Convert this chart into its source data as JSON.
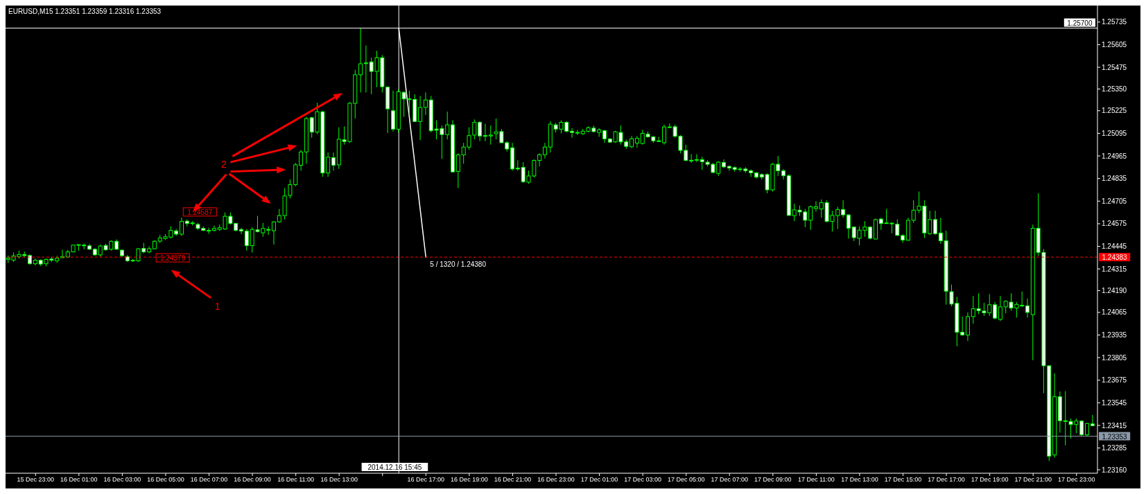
{
  "chart_data": {
    "type": "candlestick",
    "title": "EURUSD,M15  1.23351 1.23359 1.23316 1.23353",
    "color": "#00ff00",
    "x": [
      "2014-12-15T21:45",
      "2014-12-15T22:00",
      "2014-12-15T22:15",
      "2014-12-15T22:30",
      "2014-12-15T22:45",
      "2014-12-15T23:00",
      "2014-12-15T23:15",
      "2014-12-15T23:30",
      "2014-12-15T23:45",
      "2014-12-16T00:00",
      "2014-12-16T00:15",
      "2014-12-16T00:30",
      "2014-12-16T00:45",
      "2014-12-16T01:00",
      "2014-12-16T01:15",
      "2014-12-16T01:30",
      "2014-12-16T01:45",
      "2014-12-16T02:00",
      "2014-12-16T02:15",
      "2014-12-16T02:30",
      "2014-12-16T02:45",
      "2014-12-16T03:00",
      "2014-12-16T03:15",
      "2014-12-16T03:30",
      "2014-12-16T03:45",
      "2014-12-16T04:00",
      "2014-12-16T04:15",
      "2014-12-16T04:30",
      "2014-12-16T04:45",
      "2014-12-16T05:00",
      "2014-12-16T05:15",
      "2014-12-16T05:30",
      "2014-12-16T05:45",
      "2014-12-16T06:00",
      "2014-12-16T06:15",
      "2014-12-16T06:30",
      "2014-12-16T06:45",
      "2014-12-16T07:00",
      "2014-12-16T07:15",
      "2014-12-16T07:30",
      "2014-12-16T07:45",
      "2014-12-16T08:00",
      "2014-12-16T08:15",
      "2014-12-16T08:30",
      "2014-12-16T08:45",
      "2014-12-16T09:00",
      "2014-12-16T09:15",
      "2014-12-16T09:30",
      "2014-12-16T09:45",
      "2014-12-16T10:00",
      "2014-12-16T10:15",
      "2014-12-16T10:30",
      "2014-12-16T10:45",
      "2014-12-16T11:00",
      "2014-12-16T11:15",
      "2014-12-16T11:30",
      "2014-12-16T11:45",
      "2014-12-16T12:00",
      "2014-12-16T12:15",
      "2014-12-16T12:30",
      "2014-12-16T12:45",
      "2014-12-16T13:00",
      "2014-12-16T13:15",
      "2014-12-16T13:30",
      "2014-12-16T13:45",
      "2014-12-16T14:00",
      "2014-12-16T14:15",
      "2014-12-16T14:30",
      "2014-12-16T14:45",
      "2014-12-16T15:00",
      "2014-12-16T15:15",
      "2014-12-16T15:30",
      "2014-12-16T15:45",
      "2014-12-16T16:00",
      "2014-12-16T16:15",
      "2014-12-16T16:30",
      "2014-12-16T16:45",
      "2014-12-16T17:00",
      "2014-12-16T17:15",
      "2014-12-16T17:30",
      "2014-12-16T17:45",
      "2014-12-16T18:00",
      "2014-12-16T18:15",
      "2014-12-16T18:30",
      "2014-12-16T18:45",
      "2014-12-16T19:00",
      "2014-12-16T19:15",
      "2014-12-16T19:30",
      "2014-12-16T19:45",
      "2014-12-16T20:00",
      "2014-12-16T20:15",
      "2014-12-16T20:30",
      "2014-12-16T20:45",
      "2014-12-16T21:00",
      "2014-12-16T21:15",
      "2014-12-16T21:30",
      "2014-12-16T21:45",
      "2014-12-16T22:00",
      "2014-12-16T22:15",
      "2014-12-16T22:30",
      "2014-12-16T22:45",
      "2014-12-16T23:00",
      "2014-12-16T23:15",
      "2014-12-16T23:30",
      "2014-12-16T23:45",
      "2014-12-17T00:00",
      "2014-12-17T00:15",
      "2014-12-17T00:30",
      "2014-12-17T00:45",
      "2014-12-17T01:00",
      "2014-12-17T01:15",
      "2014-12-17T01:30",
      "2014-12-17T01:45",
      "2014-12-17T02:00",
      "2014-12-17T02:15",
      "2014-12-17T02:30",
      "2014-12-17T02:45",
      "2014-12-17T03:00",
      "2014-12-17T03:15",
      "2014-12-17T03:30",
      "2014-12-17T03:45",
      "2014-12-17T04:00",
      "2014-12-17T04:15",
      "2014-12-17T04:30",
      "2014-12-17T04:45",
      "2014-12-17T05:00",
      "2014-12-17T05:15",
      "2014-12-17T05:30",
      "2014-12-17T05:45",
      "2014-12-17T06:00",
      "2014-12-17T06:15",
      "2014-12-17T06:30",
      "2014-12-17T06:45",
      "2014-12-17T07:00",
      "2014-12-17T07:15",
      "2014-12-17T07:30",
      "2014-12-17T07:45",
      "2014-12-17T08:00",
      "2014-12-17T08:15",
      "2014-12-17T08:30",
      "2014-12-17T08:45",
      "2014-12-17T09:00",
      "2014-12-17T09:15",
      "2014-12-17T09:30",
      "2014-12-17T09:45",
      "2014-12-17T10:00",
      "2014-12-17T10:15",
      "2014-12-17T10:30",
      "2014-12-17T10:45",
      "2014-12-17T11:00",
      "2014-12-17T11:15",
      "2014-12-17T11:30",
      "2014-12-17T11:45",
      "2014-12-17T12:00",
      "2014-12-17T12:15",
      "2014-12-17T12:30",
      "2014-12-17T12:45",
      "2014-12-17T13:00",
      "2014-12-17T13:15",
      "2014-12-17T13:30",
      "2014-12-17T13:45",
      "2014-12-17T14:00",
      "2014-12-17T14:15",
      "2014-12-17T14:30",
      "2014-12-17T14:45",
      "2014-12-17T15:00",
      "2014-12-17T15:15",
      "2014-12-17T15:30",
      "2014-12-17T15:45",
      "2014-12-17T16:00",
      "2014-12-17T16:15",
      "2014-12-17T16:30",
      "2014-12-17T16:45",
      "2014-12-17T17:00",
      "2014-12-17T17:15",
      "2014-12-17T17:30",
      "2014-12-17T17:45",
      "2014-12-17T18:00",
      "2014-12-17T18:15",
      "2014-12-17T18:30",
      "2014-12-17T18:45",
      "2014-12-17T19:00",
      "2014-12-17T19:15",
      "2014-12-17T19:30",
      "2014-12-17T19:45",
      "2014-12-17T20:00",
      "2014-12-17T20:15",
      "2014-12-17T20:30",
      "2014-12-17T20:45",
      "2014-12-17T21:00",
      "2014-12-17T21:15",
      "2014-12-17T21:30",
      "2014-12-17T21:45",
      "2014-12-17T22:00",
      "2014-12-17T22:15",
      "2014-12-17T22:30",
      "2014-12-17T22:45",
      "2014-12-17T23:00",
      "2014-12-17T23:15",
      "2014-12-17T23:30",
      "2014-12-17T23:45"
    ],
    "ohlc": [
      [
        1.2437,
        1.24392,
        1.2435,
        1.24378
      ],
      [
        1.24366,
        1.2441,
        1.24355,
        1.2439
      ],
      [
        1.24386,
        1.2442,
        1.24375,
        1.24398
      ],
      [
        1.24398,
        1.24415,
        1.2438,
        1.24392
      ],
      [
        1.24392,
        1.244,
        1.2434,
        1.24345
      ],
      [
        1.24345,
        1.24375,
        1.24335,
        1.24365
      ],
      [
        1.24365,
        1.2437,
        1.24332,
        1.24343
      ],
      [
        1.24345,
        1.24375,
        1.2433,
        1.2437
      ],
      [
        1.24372,
        1.24385,
        1.24355,
        1.24365
      ],
      [
        1.24362,
        1.2439,
        1.2435,
        1.24376
      ],
      [
        1.2438,
        1.24425,
        1.24378,
        1.24386
      ],
      [
        1.24384,
        1.24425,
        1.24378,
        1.24413
      ],
      [
        1.24413,
        1.24455,
        1.2441,
        1.24452
      ],
      [
        1.24452,
        1.24455,
        1.2442,
        1.24455
      ],
      [
        1.24452,
        1.24461,
        1.24428,
        1.2445
      ],
      [
        1.24448,
        1.24458,
        1.24425,
        1.24428
      ],
      [
        1.24428,
        1.24435,
        1.2439,
        1.24396
      ],
      [
        1.24396,
        1.24455,
        1.24385,
        1.24447
      ],
      [
        1.2445,
        1.2446,
        1.2442,
        1.24425
      ],
      [
        1.24428,
        1.2448,
        1.2442,
        1.24474
      ],
      [
        1.24474,
        1.24485,
        1.24425,
        1.24428
      ],
      [
        1.24423,
        1.24428,
        1.24385,
        1.24391
      ],
      [
        1.24386,
        1.24395,
        1.24355,
        1.24362
      ],
      [
        1.24362,
        1.24372,
        1.24355,
        1.24365
      ],
      [
        1.24362,
        1.24435,
        1.24355,
        1.24431
      ],
      [
        1.24433,
        1.24465,
        1.24405,
        1.24413
      ],
      [
        1.24413,
        1.24445,
        1.24405,
        1.24431
      ],
      [
        1.24431,
        1.2448,
        1.24428,
        1.24474
      ],
      [
        1.24475,
        1.2451,
        1.24465,
        1.24493
      ],
      [
        1.2449,
        1.24515,
        1.24482,
        1.245
      ],
      [
        1.24498,
        1.2456,
        1.2449,
        1.24537
      ],
      [
        1.24534,
        1.24545,
        1.24505,
        1.24515
      ],
      [
        1.24515,
        1.2461,
        1.24505,
        1.24589
      ],
      [
        1.2459,
        1.246,
        1.2456,
        1.24577
      ],
      [
        1.24577,
        1.2459,
        1.24565,
        1.2458
      ],
      [
        1.24571,
        1.2458,
        1.2454,
        1.24548
      ],
      [
        1.24548,
        1.2456,
        1.24533,
        1.24537
      ],
      [
        1.24537,
        1.24552,
        1.24517,
        1.24537
      ],
      [
        1.24537,
        1.24565,
        1.2453,
        1.24548
      ],
      [
        1.24542,
        1.2457,
        1.24535,
        1.24552
      ],
      [
        1.24545,
        1.2464,
        1.2454,
        1.24618
      ],
      [
        1.24618,
        1.2464,
        1.2457,
        1.24577
      ],
      [
        1.24577,
        1.2458,
        1.2453,
        1.24537
      ],
      [
        1.24542,
        1.2455,
        1.24515,
        1.24533
      ],
      [
        1.24533,
        1.24545,
        1.2442,
        1.24449
      ],
      [
        1.24449,
        1.24555,
        1.2441,
        1.24542
      ],
      [
        1.2454,
        1.2462,
        1.24525,
        1.2453
      ],
      [
        1.24523,
        1.2458,
        1.245,
        1.24548
      ],
      [
        1.24542,
        1.2456,
        1.2451,
        1.2454
      ],
      [
        1.24535,
        1.2459,
        1.24455,
        1.24586
      ],
      [
        1.24586,
        1.2466,
        1.2458,
        1.24622
      ],
      [
        1.24622,
        1.2478,
        1.246,
        1.24735
      ],
      [
        1.24738,
        1.2483,
        1.2472,
        1.248
      ],
      [
        1.248,
        1.24925,
        1.2479,
        1.24914
      ],
      [
        1.24911,
        1.25,
        1.2488,
        1.24988
      ],
      [
        1.24988,
        1.2519,
        1.2492,
        1.2518
      ],
      [
        1.25185,
        1.2519,
        1.2507,
        1.25102
      ],
      [
        1.25102,
        1.2527,
        1.2509,
        1.25219
      ],
      [
        1.25219,
        1.25225,
        1.24845,
        1.24867
      ],
      [
        1.24867,
        1.24985,
        1.24845,
        1.24958
      ],
      [
        1.24955,
        1.24985,
        1.2488,
        1.24911
      ],
      [
        1.24914,
        1.2513,
        1.2489,
        1.25061
      ],
      [
        1.25058,
        1.25135,
        1.2503,
        1.25048
      ],
      [
        1.25048,
        1.25275,
        1.2504,
        1.25268
      ],
      [
        1.25268,
        1.2546,
        1.2518,
        1.25432
      ],
      [
        1.25432,
        1.257,
        1.2533,
        1.25495
      ],
      [
        1.255,
        1.256,
        1.2533,
        1.25498
      ],
      [
        1.25506,
        1.2553,
        1.2532,
        1.25451
      ],
      [
        1.25451,
        1.2557,
        1.2536,
        1.2553
      ],
      [
        1.2553,
        1.25545,
        1.2533,
        1.25363
      ],
      [
        1.25361,
        1.25365,
        1.25097,
        1.25236
      ],
      [
        1.25225,
        1.2534,
        1.25105,
        1.25119
      ],
      [
        1.25119,
        1.2535,
        1.251,
        1.25334
      ],
      [
        1.25331,
        1.25335,
        1.2519,
        1.25293
      ],
      [
        1.25293,
        1.2534,
        1.252,
        1.2529
      ],
      [
        1.2529,
        1.2532,
        1.2516,
        1.25163
      ],
      [
        1.25163,
        1.2531,
        1.25056,
        1.25244
      ],
      [
        1.25244,
        1.2533,
        1.252,
        1.25287
      ],
      [
        1.25287,
        1.2531,
        1.251,
        1.2511
      ],
      [
        1.2512,
        1.2517,
        1.2506,
        1.25113
      ],
      [
        1.25122,
        1.2514,
        1.24948,
        1.25088
      ],
      [
        1.25088,
        1.2522,
        1.2506,
        1.25144
      ],
      [
        1.25144,
        1.2517,
        1.2487,
        1.24873
      ],
      [
        1.24876,
        1.2498,
        1.2478,
        1.24971
      ],
      [
        1.24971,
        1.2504,
        1.2492,
        1.25016
      ],
      [
        1.25016,
        1.2513,
        1.25,
        1.25082
      ],
      [
        1.25085,
        1.25175,
        1.2506,
        1.25158
      ],
      [
        1.25158,
        1.25165,
        1.2505,
        1.2508
      ],
      [
        1.25082,
        1.2515,
        1.2505,
        1.2508
      ],
      [
        1.2508,
        1.2514,
        1.2503,
        1.25085
      ],
      [
        1.25093,
        1.2518,
        1.2506,
        1.25103
      ],
      [
        1.25105,
        1.2512,
        1.25041,
        1.25041
      ],
      [
        1.25041,
        1.2505,
        1.2499,
        1.25005
      ],
      [
        1.25012,
        1.2504,
        1.2488,
        1.2489
      ],
      [
        1.24895,
        1.2494,
        1.2488,
        1.2489
      ],
      [
        1.24899,
        1.2493,
        1.2481,
        1.24817
      ],
      [
        1.24814,
        1.2488,
        1.24805,
        1.2485
      ],
      [
        1.2485,
        1.24945,
        1.2484,
        1.24939
      ],
      [
        1.24939,
        1.2498,
        1.24905,
        1.24972
      ],
      [
        1.24972,
        1.2504,
        1.2495,
        1.25016
      ],
      [
        1.25016,
        1.25165,
        1.24985,
        1.25148
      ],
      [
        1.25144,
        1.25155,
        1.251,
        1.25119
      ],
      [
        1.25119,
        1.2517,
        1.25095,
        1.25158
      ],
      [
        1.25158,
        1.25165,
        1.251,
        1.25107
      ],
      [
        1.25107,
        1.25125,
        1.2507,
        1.251
      ],
      [
        1.251,
        1.25115,
        1.25085,
        1.251
      ],
      [
        1.25093,
        1.2512,
        1.25085,
        1.25107
      ],
      [
        1.25107,
        1.25135,
        1.251,
        1.25127
      ],
      [
        1.25125,
        1.2514,
        1.251,
        1.25105
      ],
      [
        1.251,
        1.25125,
        1.25075,
        1.25115
      ],
      [
        1.2511,
        1.25115,
        1.2504,
        1.25063
      ],
      [
        1.25063,
        1.25068,
        1.2504,
        1.25044
      ],
      [
        1.25046,
        1.2511,
        1.2504,
        1.25104
      ],
      [
        1.251,
        1.2514,
        1.2503,
        1.25046
      ],
      [
        1.25046,
        1.2506,
        1.25005,
        1.2502
      ],
      [
        1.25018,
        1.2508,
        1.2501,
        1.25064
      ],
      [
        1.25039,
        1.2508,
        1.25012,
        1.25066
      ],
      [
        1.25037,
        1.25115,
        1.2503,
        1.25095
      ],
      [
        1.2509,
        1.25105,
        1.2507,
        1.25075
      ],
      [
        1.25075,
        1.2508,
        1.2504,
        1.25052
      ],
      [
        1.25052,
        1.25075,
        1.25045,
        1.2505
      ],
      [
        1.25041,
        1.25145,
        1.2503,
        1.25132
      ],
      [
        1.2513,
        1.25152,
        1.25125,
        1.25132
      ],
      [
        1.25133,
        1.25145,
        1.2507,
        1.25078
      ],
      [
        1.25078,
        1.25085,
        1.2498,
        1.24997
      ],
      [
        1.24997,
        1.2503,
        1.24935,
        1.24939
      ],
      [
        1.2494,
        1.24975,
        1.24925,
        1.24938
      ],
      [
        1.2494,
        1.24975,
        1.2493,
        1.24944
      ],
      [
        1.24944,
        1.2496,
        1.24885,
        1.24932
      ],
      [
        1.24929,
        1.2494,
        1.24905,
        1.24917
      ],
      [
        1.24917,
        1.24925,
        1.24865,
        1.2487
      ],
      [
        1.24865,
        1.24935,
        1.2485,
        1.24929
      ],
      [
        1.24927,
        1.24945,
        1.24895,
        1.24902
      ],
      [
        1.24905,
        1.2491,
        1.2488,
        1.24895
      ],
      [
        1.24898,
        1.24905,
        1.24875,
        1.24887
      ],
      [
        1.2489,
        1.249,
        1.24875,
        1.2489
      ],
      [
        1.2489,
        1.249,
        1.24868,
        1.2488
      ],
      [
        1.2488,
        1.24888,
        1.24845,
        1.24868
      ],
      [
        1.24868,
        1.24872,
        1.24835,
        1.24843
      ],
      [
        1.24858,
        1.24865,
        1.2483,
        1.24843
      ],
      [
        1.24858,
        1.24865,
        1.2475,
        1.2477
      ],
      [
        1.2477,
        1.24925,
        1.2476,
        1.24917
      ],
      [
        1.24917,
        1.24965,
        1.2485,
        1.2488
      ],
      [
        1.2488,
        1.2489,
        1.2483,
        1.24851
      ],
      [
        1.24851,
        1.2486,
        1.2462,
        1.24623
      ],
      [
        1.24622,
        1.2469,
        1.2459,
        1.24655
      ],
      [
        1.24653,
        1.2468,
        1.2462,
        1.24643
      ],
      [
        1.24643,
        1.2466,
        1.24555,
        1.24595
      ],
      [
        1.24595,
        1.2468,
        1.2454,
        1.24673
      ],
      [
        1.24663,
        1.24705,
        1.24645,
        1.24673
      ],
      [
        1.2466,
        1.24715,
        1.2461,
        1.24696
      ],
      [
        1.24696,
        1.2471,
        1.24583,
        1.24588
      ],
      [
        1.24588,
        1.2465,
        1.2453,
        1.24623
      ],
      [
        1.24622,
        1.24672,
        1.24545,
        1.24657
      ],
      [
        1.24657,
        1.2471,
        1.2461,
        1.24626
      ],
      [
        1.24626,
        1.2463,
        1.2449,
        1.24549
      ],
      [
        1.24556,
        1.2456,
        1.24475,
        1.24495
      ],
      [
        1.24491,
        1.2456,
        1.2445,
        1.24538
      ],
      [
        1.24538,
        1.2459,
        1.245,
        1.24556
      ],
      [
        1.24556,
        1.2456,
        1.24485,
        1.24491
      ],
      [
        1.24487,
        1.24605,
        1.24485,
        1.24599
      ],
      [
        1.24602,
        1.2461,
        1.2454,
        1.24576
      ],
      [
        1.24578,
        1.2466,
        1.24575,
        1.2458
      ],
      [
        1.24578,
        1.24585,
        1.2452,
        1.24578
      ],
      [
        1.24572,
        1.246,
        1.24505,
        1.24508
      ],
      [
        1.24507,
        1.24515,
        1.24465,
        1.24481
      ],
      [
        1.2448,
        1.2461,
        1.24478,
        1.24595
      ],
      [
        1.24595,
        1.2471,
        1.2458,
        1.24653
      ],
      [
        1.24653,
        1.2476,
        1.24636,
        1.24676
      ],
      [
        1.24676,
        1.2471,
        1.24493,
        1.24522
      ],
      [
        1.24518,
        1.2465,
        1.2451,
        1.24599
      ],
      [
        1.24599,
        1.2465,
        1.2451,
        1.24518
      ],
      [
        1.24522,
        1.2461,
        1.2446,
        1.24477
      ],
      [
        1.24477,
        1.24535,
        1.2411,
        1.24187
      ],
      [
        1.24184,
        1.24225,
        1.241,
        1.24113
      ],
      [
        1.24117,
        1.24155,
        1.2387,
        1.23951
      ],
      [
        1.23951,
        1.2404,
        1.2393,
        1.23935
      ],
      [
        1.23935,
        1.24065,
        1.239,
        1.24041
      ],
      [
        1.24041,
        1.2416,
        1.24,
        1.24086
      ],
      [
        1.24086,
        1.24175,
        1.24055,
        1.24075
      ],
      [
        1.24073,
        1.2412,
        1.24045,
        1.24063
      ],
      [
        1.24063,
        1.2417,
        1.24045,
        1.24109
      ],
      [
        1.24109,
        1.24125,
        1.24025,
        1.24032
      ],
      [
        1.24025,
        1.2416,
        1.24015,
        1.24097
      ],
      [
        1.24097,
        1.24135,
        1.2406,
        1.24129
      ],
      [
        1.24124,
        1.24175,
        1.24075,
        1.2409
      ],
      [
        1.2409,
        1.24125,
        1.24035,
        1.24111
      ],
      [
        1.24106,
        1.24185,
        1.24095,
        1.24106
      ],
      [
        1.24103,
        1.24145,
        1.24035,
        1.24065
      ],
      [
        1.24052,
        1.2457,
        1.2379,
        1.24549
      ],
      [
        1.24549,
        1.2475,
        1.2439,
        1.2441
      ],
      [
        1.2441,
        1.2443,
        1.236,
        1.23758
      ],
      [
        1.23758,
        1.2376,
        1.2321,
        1.23238
      ],
      [
        1.23245,
        1.23715,
        1.2323,
        1.2358
      ],
      [
        1.2358,
        1.2361,
        1.23373,
        1.23442
      ],
      [
        1.23442,
        1.23612,
        1.233,
        1.2344
      ],
      [
        1.23438,
        1.23455,
        1.2334,
        1.2342
      ],
      [
        1.2342,
        1.23455,
        1.2337,
        1.2344
      ],
      [
        1.2344,
        1.23445,
        1.23355,
        1.23361
      ],
      [
        1.23361,
        1.2343,
        1.23355,
        1.23426
      ],
      [
        1.23424,
        1.23475,
        1.2341,
        1.23413
      ]
    ],
    "xlim": [
      "2014-12-15T21:37",
      "2014-12-17T23:58"
    ],
    "xticks": [
      {
        "value": "2014-12-15T23:00",
        "label": "15 Dec 23:00"
      },
      {
        "value": "2014-12-16T01:00",
        "label": "16 Dec 01:00"
      },
      {
        "value": "2014-12-16T03:00",
        "label": "16 Dec 03:00"
      },
      {
        "value": "2014-12-16T05:00",
        "label": "16 Dec 05:00"
      },
      {
        "value": "2014-12-16T07:00",
        "label": "16 Dec 07:00"
      },
      {
        "value": "2014-12-16T09:00",
        "label": "16 Dec 09:00"
      },
      {
        "value": "2014-12-16T11:00",
        "label": "16 Dec 11:00"
      },
      {
        "value": "2014-12-16T13:00",
        "label": "16 Dec 13:00"
      },
      {
        "value": "2014-12-16T15:00",
        "label": null
      },
      {
        "value": "2014-12-16T17:00",
        "label": "16 Dec 17:00"
      },
      {
        "value": "2014-12-16T19:00",
        "label": "16 Dec 19:00"
      },
      {
        "value": "2014-12-16T21:00",
        "label": "16 Dec 21:00"
      },
      {
        "value": "2014-12-16T23:00",
        "label": "16 Dec 23:00"
      },
      {
        "value": "2014-12-17T01:00",
        "label": "17 Dec 01:00"
      },
      {
        "value": "2014-12-17T03:00",
        "label": "17 Dec 03:00"
      },
      {
        "value": "2014-12-17T05:00",
        "label": "17 Dec 05:00"
      },
      {
        "value": "2014-12-17T07:00",
        "label": "17 Dec 07:00"
      },
      {
        "value": "2014-12-17T09:00",
        "label": "17 Dec 09:00"
      },
      {
        "value": "2014-12-17T11:00",
        "label": "17 Dec 11:00"
      },
      {
        "value": "2014-12-17T13:00",
        "label": "17 Dec 13:00"
      },
      {
        "value": "2014-12-17T15:00",
        "label": "17 Dec 15:00"
      },
      {
        "value": "2014-12-17T17:00",
        "label": "17 Dec 17:00"
      },
      {
        "value": "2014-12-17T19:00",
        "label": "17 Dec 19:00"
      },
      {
        "value": "2014-12-17T21:00",
        "label": "17 Dec 21:00"
      },
      {
        "value": "2014-12-17T23:00",
        "label": "17 Dec 23:00"
      }
    ],
    "ylim": [
      1.2314,
      1.2583
    ],
    "yticks": [
      1.25735,
      1.25605,
      1.25475,
      {
        "value": 1.2535,
        "label": "1.25350"
      },
      1.25225,
      1.25095,
      1.24965,
      1.24835,
      1.24705,
      1.24575,
      1.24445,
      1.24315,
      {
        "value": 1.2419,
        "label": "1.24190"
      },
      1.24065,
      1.23935,
      1.23805,
      1.23675,
      1.23545,
      1.23415,
      1.23285,
      {
        "value": 1.2316,
        "label": "1.23160"
      }
    ],
    "ref_lines": [
      {
        "axis": "y",
        "value": 1.257,
        "label": "1.25700",
        "color": "#ffffff"
      },
      {
        "axis": "x",
        "value": "2014-12-16T15:45",
        "label": "2014.12.16 15:45",
        "color": "#ffffff"
      },
      {
        "axis": "y",
        "value": 1.24383,
        "label": "1.24383",
        "color": "#ff0000",
        "line_style": "dashed"
      },
      {
        "axis": "y",
        "value": 1.23353,
        "label": "1.23353",
        "color": "#8a9aa8"
      }
    ],
    "annotations": [
      {
        "text": "1.24587",
        "x": "2014-12-16T06:00",
        "y": 1.24587
      },
      {
        "text": "1.24379",
        "x": "2014-12-16T04:45",
        "y": 1.24379
      },
      {
        "text": "5 / 1320 / 1.24380",
        "x": "2014-12-16T17:00",
        "y": 1.2438
      },
      "1",
      "2"
    ]
  }
}
